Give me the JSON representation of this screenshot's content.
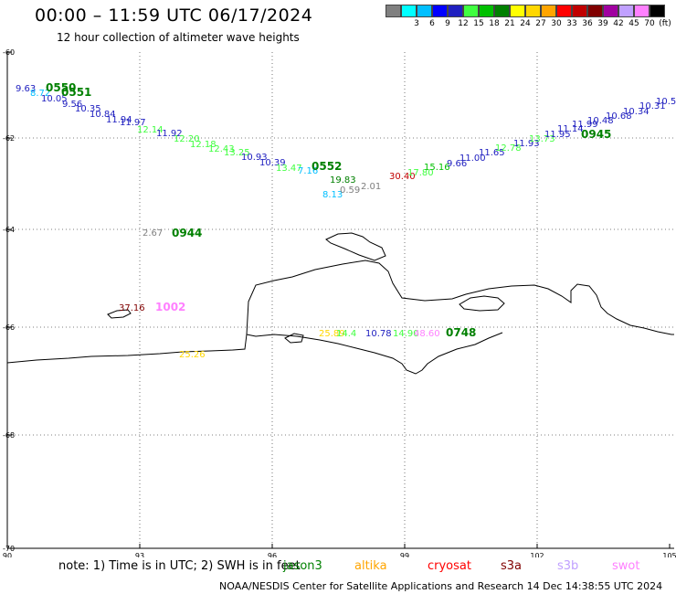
{
  "header": {
    "title": "00:00 – 11:59 UTC 06/17/2024",
    "subtitle": "12 hour collection of altimeter wave heights"
  },
  "legend": {
    "unit": "(ft)",
    "items": [
      {
        "label": "",
        "color": "#808080"
      },
      {
        "label": "3",
        "color": "#00ffff"
      },
      {
        "label": "6",
        "color": "#00bfff"
      },
      {
        "label": "9",
        "color": "#0000ff"
      },
      {
        "label": "12",
        "color": "#2020c0"
      },
      {
        "label": "15",
        "color": "#40ff40"
      },
      {
        "label": "18",
        "color": "#00c000"
      },
      {
        "label": "21",
        "color": "#008000"
      },
      {
        "label": "24",
        "color": "#ffff00"
      },
      {
        "label": "27",
        "color": "#ffd700"
      },
      {
        "label": "30",
        "color": "#ffa500"
      },
      {
        "label": "33",
        "color": "#ff0000"
      },
      {
        "label": "36",
        "color": "#c00000"
      },
      {
        "label": "39",
        "color": "#800000"
      },
      {
        "label": "42",
        "color": "#a000a0"
      },
      {
        "label": "45",
        "color": "#c0a0ff"
      },
      {
        "label": "70",
        "color": "#ff80ff"
      },
      {
        "label": "",
        "color": "#000000"
      }
    ]
  },
  "axes": {
    "lat_labels": [
      "-60",
      "-62",
      "-64",
      "-66",
      "-68",
      "-70"
    ],
    "lon_labels": [
      "90",
      "93",
      "96",
      "99",
      "102",
      "105"
    ]
  },
  "observations": [
    {
      "text": "9.63",
      "color": "#2020c0"
    },
    {
      "text": "8.72",
      "color": "#00bfff"
    },
    {
      "text": "0550",
      "color": "#008000"
    },
    {
      "text": "10.05",
      "color": "#2020c0"
    },
    {
      "text": "0551",
      "color": "#008000"
    },
    {
      "text": "9.56",
      "color": "#2020c0"
    },
    {
      "text": "10.35",
      "color": "#2020c0"
    },
    {
      "text": "10.84",
      "color": "#2020c0"
    },
    {
      "text": "11.94",
      "color": "#2020c0"
    },
    {
      "text": "11.97",
      "color": "#2020c0"
    },
    {
      "text": "12.14",
      "color": "#40ff40"
    },
    {
      "text": "11.92",
      "color": "#2020c0"
    },
    {
      "text": "12.20",
      "color": "#40ff40"
    },
    {
      "text": "12.18",
      "color": "#40ff40"
    },
    {
      "text": "12.43",
      "color": "#40ff40"
    },
    {
      "text": "13.25",
      "color": "#40ff40"
    },
    {
      "text": "10.93",
      "color": "#2020c0"
    },
    {
      "text": "10.39",
      "color": "#2020c0"
    },
    {
      "text": "13.47",
      "color": "#40ff40"
    },
    {
      "text": "7.16",
      "color": "#00bfff"
    },
    {
      "text": "0552",
      "color": "#008000"
    },
    {
      "text": "19.83",
      "color": "#008000"
    },
    {
      "text": "8.13",
      "color": "#00bfff"
    },
    {
      "text": "0.59",
      "color": "#808080"
    },
    {
      "text": "2.01",
      "color": "#808080"
    },
    {
      "text": "30.40",
      "color": "#c00000"
    },
    {
      "text": "17.80",
      "color": "#40ff40"
    },
    {
      "text": "15.16",
      "color": "#00c000"
    },
    {
      "text": "9.66",
      "color": "#2020c0"
    },
    {
      "text": "11.00",
      "color": "#2020c0"
    },
    {
      "text": "11.65",
      "color": "#2020c0"
    },
    {
      "text": "12.78",
      "color": "#40ff40"
    },
    {
      "text": "11.93",
      "color": "#2020c0"
    },
    {
      "text": "13.73",
      "color": "#40ff40"
    },
    {
      "text": "11.95",
      "color": "#2020c0"
    },
    {
      "text": "11.14",
      "color": "#2020c0"
    },
    {
      "text": "11.99",
      "color": "#2020c0"
    },
    {
      "text": "10.48",
      "color": "#2020c0"
    },
    {
      "text": "0945",
      "color": "#008000"
    },
    {
      "text": "10.68",
      "color": "#2020c0"
    },
    {
      "text": "10.34",
      "color": "#2020c0"
    },
    {
      "text": "10.31",
      "color": "#2020c0"
    },
    {
      "text": "10.5",
      "color": "#2020c0"
    },
    {
      "text": "2.67",
      "color": "#808080"
    },
    {
      "text": "0944",
      "color": "#008000"
    },
    {
      "text": "37.16",
      "color": "#800000"
    },
    {
      "text": "1002",
      "color": "#ff80ff"
    },
    {
      "text": "25.89",
      "color": "#ffd700"
    },
    {
      "text": "14.4",
      "color": "#40ff40"
    },
    {
      "text": "10.78",
      "color": "#2020c0"
    },
    {
      "text": "14.90",
      "color": "#40ff40"
    },
    {
      "text": "48.60",
      "color": "#ff80ff"
    },
    {
      "text": "0748",
      "color": "#008000"
    },
    {
      "text": "25.26",
      "color": "#ffd700"
    }
  ],
  "footer": {
    "note": "note: 1) Time is in UTC; 2) SWH is in feet",
    "satellites": [
      {
        "name": "jason3",
        "color": "#008000"
      },
      {
        "name": "altika",
        "color": "#ffa500"
      },
      {
        "name": "cryosat",
        "color": "#ff0000"
      },
      {
        "name": "s3a",
        "color": "#800000"
      },
      {
        "name": "s3b",
        "color": "#c0a0ff"
      },
      {
        "name": "swot",
        "color": "#ff80ff"
      }
    ],
    "credit": "NOAA/NESDIS Center for Satellite Applications and Research    14 Dec 14:38:55 UTC 2024"
  }
}
